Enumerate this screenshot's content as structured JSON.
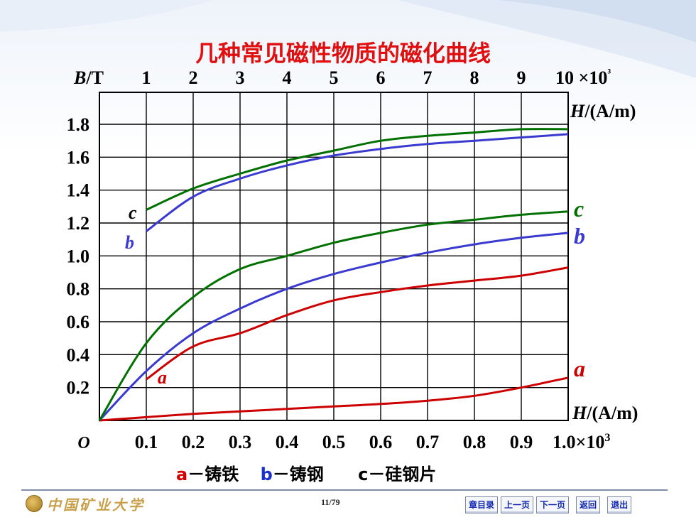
{
  "slide": {
    "title": "几种常见磁性物质的磁化曲线",
    "page": "11/79",
    "logo_text": "中国矿业大学",
    "legend_line": [
      {
        "key": "a",
        "sep": "－",
        "text": "铸铁",
        "color": "#d40000"
      },
      {
        "key": "b",
        "sep": "－",
        "text": "铸钢",
        "color": "#1a2fd0"
      },
      {
        "key": "c",
        "sep": "－",
        "text": "硅钢片",
        "color": "#000000"
      }
    ],
    "nav": [
      "章目录",
      "上一页",
      "下一页",
      "返回",
      "退出"
    ]
  },
  "colors": {
    "a": "#cc0000",
    "b": "#3a3ad0",
    "c": "#007000",
    "title": "#e01010"
  },
  "chart_data": {
    "type": "line",
    "ylabel": "B/T",
    "y_ticks": [
      "0.2",
      "0.4",
      "0.6",
      "0.8",
      "1.0",
      "1.2",
      "1.4",
      "1.6",
      "1.8"
    ],
    "ylim": [
      0,
      1.8
    ],
    "bottom_axis": {
      "label": "H/(A/m)",
      "origin": "O",
      "tick_labels": [
        "0.1",
        "0.2",
        "0.3",
        "0.4",
        "0.5",
        "0.6",
        "0.7",
        "0.8",
        "0.9",
        "1.0×10³"
      ],
      "xlim": [
        0,
        1000
      ]
    },
    "top_axis": {
      "label": "H/(A/m)",
      "tick_labels": [
        "1",
        "2",
        "3",
        "4",
        "5",
        "6",
        "7",
        "8",
        "9",
        "10 ×10³"
      ],
      "xlim": [
        0,
        10000
      ]
    },
    "grid": true,
    "series": [
      {
        "name": "a",
        "axis": "bottom",
        "color_key": "a",
        "x": [
          0,
          100,
          200,
          300,
          400,
          500,
          600,
          700,
          800,
          900,
          1000
        ],
        "y": [
          0,
          0.02,
          0.04,
          0.055,
          0.07,
          0.085,
          0.1,
          0.12,
          0.15,
          0.2,
          0.26
        ]
      },
      {
        "name": "b",
        "axis": "bottom",
        "color_key": "b",
        "x": [
          0,
          100,
          200,
          300,
          400,
          500,
          600,
          700,
          800,
          900,
          1000
        ],
        "y": [
          0,
          0.3,
          0.53,
          0.68,
          0.8,
          0.89,
          0.96,
          1.02,
          1.07,
          1.11,
          1.14
        ]
      },
      {
        "name": "c",
        "axis": "bottom",
        "color_key": "c",
        "x": [
          0,
          100,
          200,
          300,
          400,
          500,
          600,
          700,
          800,
          900,
          1000
        ],
        "y": [
          0,
          0.47,
          0.75,
          0.92,
          1.0,
          1.08,
          1.14,
          1.19,
          1.22,
          1.25,
          1.27
        ]
      },
      {
        "name": "a",
        "axis": "top",
        "color_key": "a",
        "x": [
          1000,
          2000,
          3000,
          4000,
          5000,
          6000,
          7000,
          8000,
          9000,
          10000
        ],
        "y": [
          0.25,
          0.45,
          0.53,
          0.64,
          0.73,
          0.78,
          0.82,
          0.85,
          0.88,
          0.93
        ]
      },
      {
        "name": "b",
        "axis": "top",
        "color_key": "b",
        "x": [
          1000,
          2000,
          3000,
          4000,
          5000,
          6000,
          7000,
          8000,
          9000,
          10000
        ],
        "y": [
          1.15,
          1.36,
          1.47,
          1.55,
          1.61,
          1.65,
          1.68,
          1.7,
          1.72,
          1.74
        ]
      },
      {
        "name": "c",
        "axis": "top",
        "color_key": "c",
        "x": [
          1000,
          2000,
          3000,
          4000,
          5000,
          6000,
          7000,
          8000,
          9000,
          10000
        ],
        "y": [
          1.28,
          1.41,
          1.5,
          1.58,
          1.64,
          1.7,
          1.73,
          1.75,
          1.77,
          1.77
        ]
      }
    ]
  }
}
